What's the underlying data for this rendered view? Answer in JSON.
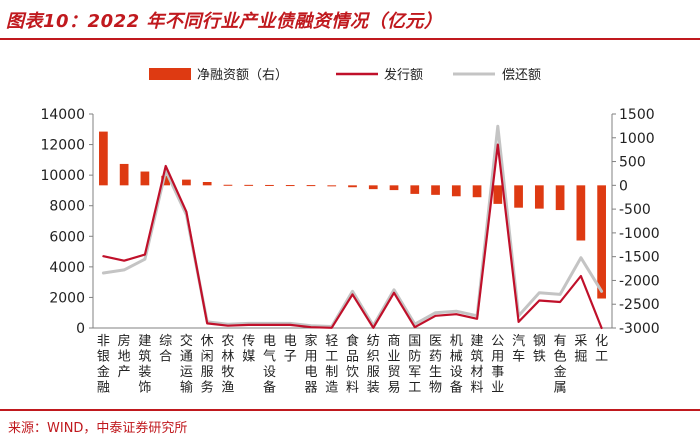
{
  "header": {
    "title": "图表10：2022 年不同行业产业债融资情况（亿元）"
  },
  "footer": {
    "source": "来源：WIND，中泰证券研究所"
  },
  "colors": {
    "accent": "#c0191e",
    "net_bar": "#de3a12",
    "issue_line": "#c0102a",
    "repay_line": "#c4c4c4",
    "axis": "#808080"
  },
  "chart_data": {
    "type": "bar+line",
    "title": "2022 年不同行业产业债融资情况（亿元）",
    "categories": [
      "非银金融",
      "房地产",
      "建筑装饰",
      "综合",
      "交通运输",
      "休闲服务",
      "农林牧渔",
      "传媒",
      "电气设备",
      "电子",
      "家用电器",
      "轻工制造",
      "食品饮料",
      "纺织服装",
      "商业贸易",
      "国防军工",
      "医药生物",
      "机械设备",
      "建筑材料",
      "公用事业",
      "汽车",
      "钢铁",
      "有色金属",
      "采掘",
      "化工"
    ],
    "series": [
      {
        "name": "净融资额（右）",
        "type": "bar",
        "axis": "right",
        "values": [
          1130,
          450,
          290,
          200,
          120,
          70,
          12,
          10,
          8,
          6,
          5,
          -15,
          -40,
          -80,
          -100,
          -180,
          -200,
          -230,
          -250,
          -390,
          -470,
          -490,
          -520,
          -1160,
          -2380
        ]
      },
      {
        "name": "发行额",
        "type": "line",
        "axis": "left",
        "values": [
          4700,
          4400,
          4800,
          10600,
          7600,
          300,
          150,
          200,
          200,
          200,
          50,
          10,
          2200,
          10,
          2300,
          50,
          800,
          900,
          600,
          12000,
          400,
          1800,
          1700,
          3400,
          0
        ]
      },
      {
        "name": "偿还额",
        "type": "line",
        "axis": "left",
        "values": [
          3600,
          3800,
          4500,
          10300,
          7400,
          400,
          250,
          300,
          300,
          300,
          150,
          100,
          2400,
          150,
          2500,
          250,
          1000,
          1100,
          800,
          13200,
          800,
          2300,
          2200,
          4600,
          2400
        ]
      }
    ],
    "left_axis": {
      "min": 0,
      "max": 14000,
      "ticks": [
        "0",
        "2000",
        "4000",
        "6000",
        "8000",
        "10000",
        "12000",
        "14000"
      ]
    },
    "right_axis": {
      "min": -3000,
      "max": 1500,
      "ticks": [
        "-3000",
        "-2500",
        "-2000",
        "-1500",
        "-1000",
        "-500",
        "0",
        "500",
        "1000",
        "1500"
      ]
    },
    "legend": {
      "position": "top",
      "labels": [
        "净融资额（右）",
        "发行额",
        "偿还额"
      ]
    }
  }
}
